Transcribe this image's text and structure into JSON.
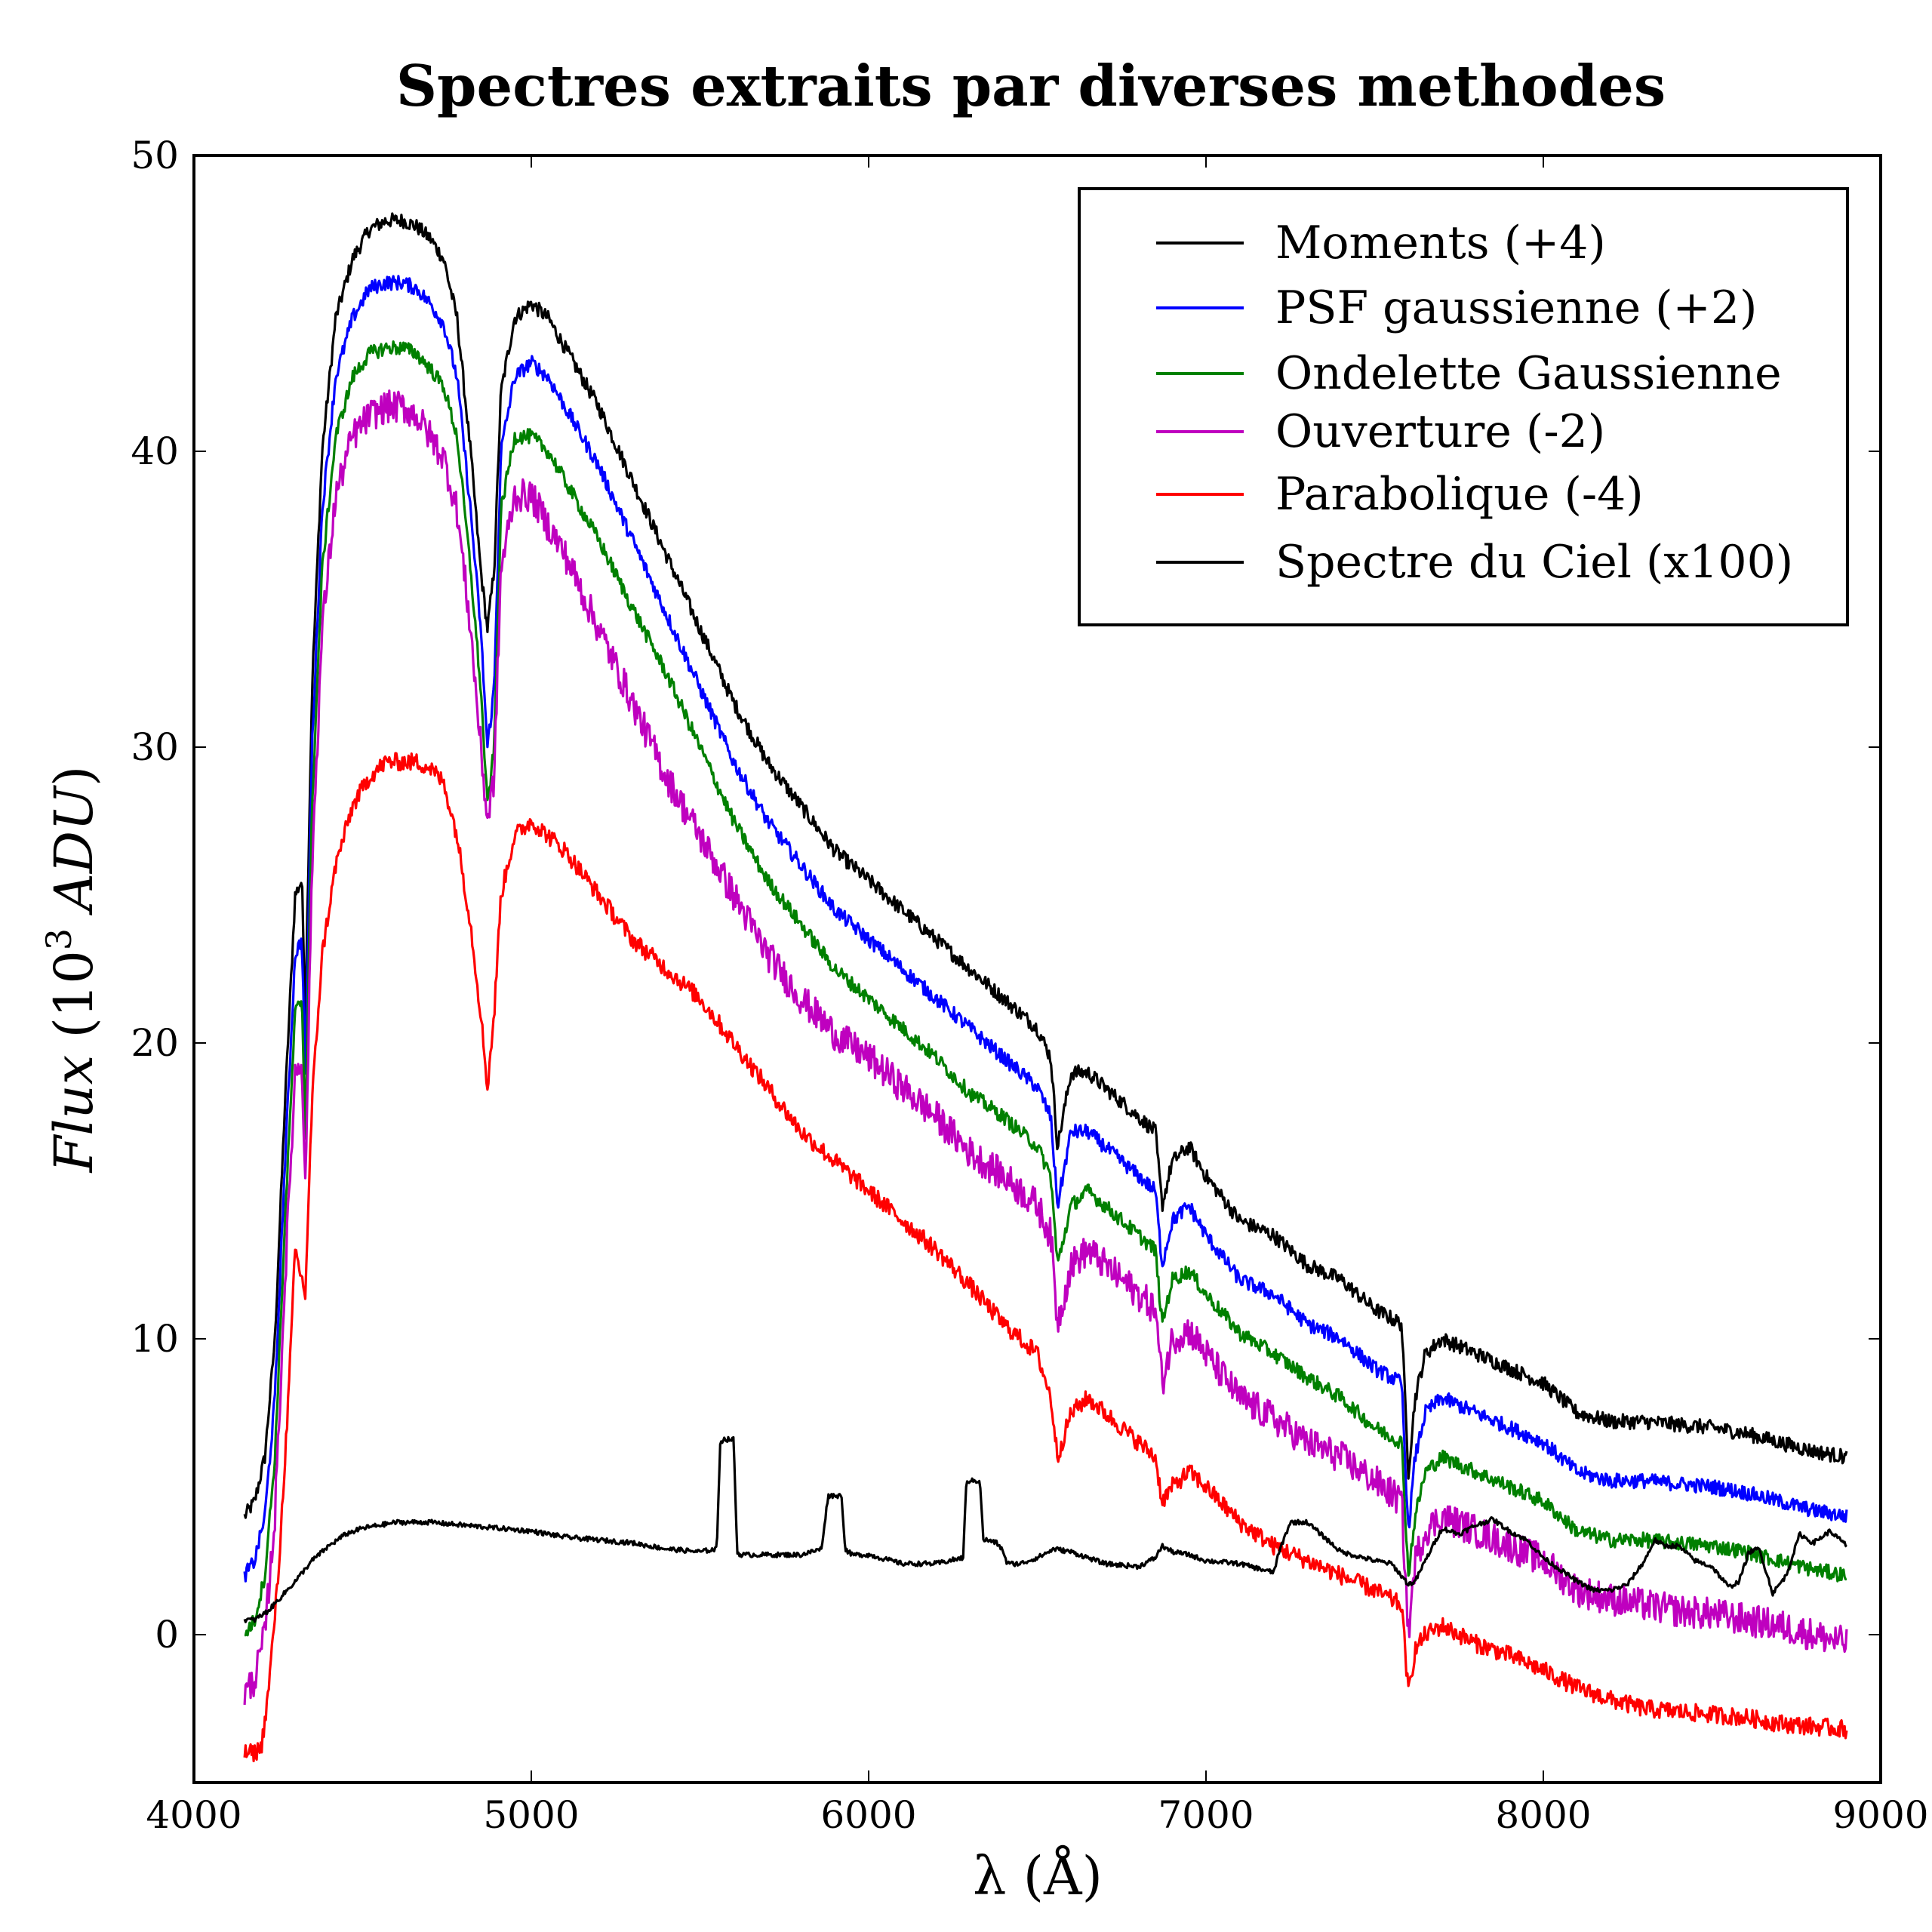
{
  "chart_data": {
    "type": "line",
    "title": "Spectres extraits par diverses methodes",
    "xlabel": "λ (Å)",
    "ylabel_parts": [
      "Flux",
      " (10",
      "3",
      " ",
      "ADU",
      ")"
    ],
    "xlim": [
      4000,
      9000
    ],
    "ylim": [
      -5,
      50
    ],
    "xticks": [
      4000,
      5000,
      6000,
      7000,
      8000,
      9000
    ],
    "yticks": [
      0,
      10,
      20,
      30,
      40,
      50
    ],
    "legend_position": "top-right",
    "series": [
      {
        "name": "Moments (+4)",
        "color": "#000000",
        "noise": 0.25,
        "x": [
          4150,
          4180,
          4210,
          4240,
          4270,
          4300,
          4320,
          4330,
          4350,
          4380,
          4420,
          4470,
          4520,
          4570,
          4620,
          4660,
          4700,
          4740,
          4780,
          4820,
          4850,
          4870,
          4890,
          4910,
          4950,
          5000,
          5050,
          5100,
          5200,
          5300,
          5400,
          5500,
          5600,
          5700,
          5800,
          5900,
          6000,
          6100,
          6200,
          6300,
          6400,
          6500,
          6540,
          6560,
          6600,
          6650,
          6700,
          6800,
          6850,
          6870,
          6900,
          6950,
          7000,
          7100,
          7200,
          7300,
          7400,
          7500,
          7580,
          7600,
          7620,
          7650,
          7700,
          7800,
          7900,
          8000,
          8100,
          8200,
          8300,
          8400,
          8500,
          8600,
          8700,
          8800,
          8900
        ],
        "y": [
          4,
          4.5,
          6,
          10,
          18,
          25,
          25.5,
          21,
          32,
          40,
          44.5,
          46.5,
          47.5,
          47.8,
          47.8,
          47.6,
          47.2,
          46.5,
          44.5,
          40,
          36,
          34,
          36,
          42,
          44.5,
          45,
          44.5,
          43.5,
          41.5,
          39,
          36.5,
          34,
          31.5,
          29.5,
          28,
          26.5,
          25.5,
          24.5,
          23.5,
          22.5,
          21.5,
          20.5,
          19.5,
          16.5,
          19,
          19,
          18.5,
          17.5,
          17,
          14.5,
          16,
          16.5,
          15.5,
          14,
          13.5,
          12.5,
          12,
          11,
          10.5,
          5.5,
          8,
          9.5,
          10,
          9.5,
          9,
          8.5,
          7.5,
          7.2,
          7.2,
          7.1,
          7,
          6.8,
          6.5,
          6.2,
          6
        ]
      },
      {
        "name": "PSF gaussienne (+2)",
        "color": "#0000ff",
        "noise": 0.25,
        "x": [
          4150,
          4180,
          4210,
          4240,
          4270,
          4300,
          4320,
          4330,
          4350,
          4380,
          4420,
          4470,
          4520,
          4570,
          4620,
          4660,
          4700,
          4740,
          4780,
          4820,
          4850,
          4870,
          4890,
          4910,
          4950,
          5000,
          5050,
          5100,
          5200,
          5300,
          5400,
          5500,
          5600,
          5700,
          5800,
          5900,
          6000,
          6100,
          6200,
          6300,
          6400,
          6500,
          6540,
          6560,
          6600,
          6650,
          6700,
          6800,
          6850,
          6870,
          6900,
          6950,
          7000,
          7100,
          7200,
          7300,
          7400,
          7500,
          7580,
          7600,
          7620,
          7650,
          7700,
          7800,
          7900,
          8000,
          8100,
          8200,
          8300,
          8400,
          8500,
          8600,
          8700,
          8800,
          8900
        ],
        "y": [
          2,
          2.5,
          4,
          8,
          16,
          23,
          23.5,
          19,
          30,
          38,
          42.5,
          44.5,
          45.5,
          45.7,
          45.7,
          45.5,
          45,
          44.3,
          42.5,
          38,
          34,
          30,
          32,
          40,
          42.5,
          43,
          42.5,
          41.5,
          39.5,
          37,
          34.5,
          32,
          29.5,
          27.5,
          26,
          24.5,
          23.5,
          22.5,
          21.5,
          20.5,
          19.5,
          18.5,
          17.5,
          14.5,
          17,
          17,
          16.5,
          15.5,
          15,
          12.5,
          14,
          14.5,
          13.5,
          12,
          11.5,
          10.5,
          10,
          9,
          8.5,
          3.5,
          6,
          7.5,
          8,
          7.5,
          7,
          6.5,
          5.5,
          5.2,
          5.2,
          5.1,
          5,
          4.8,
          4.5,
          4.2,
          4
        ]
      },
      {
        "name": "Ondelette Gaussienne",
        "color": "#008000",
        "noise": 0.25,
        "x": [
          4150,
          4180,
          4210,
          4240,
          4270,
          4300,
          4320,
          4330,
          4350,
          4380,
          4420,
          4470,
          4520,
          4570,
          4620,
          4660,
          4700,
          4740,
          4780,
          4820,
          4850,
          4870,
          4890,
          4910,
          4950,
          5000,
          5050,
          5100,
          5200,
          5300,
          5400,
          5500,
          5600,
          5700,
          5800,
          5900,
          6000,
          6100,
          6200,
          6300,
          6400,
          6500,
          6540,
          6560,
          6600,
          6650,
          6700,
          6800,
          6850,
          6870,
          6900,
          6950,
          7000,
          7100,
          7200,
          7300,
          7400,
          7500,
          7580,
          7600,
          7620,
          7650,
          7700,
          7800,
          7900,
          8000,
          8100,
          8200,
          8300,
          8400,
          8500,
          8600,
          8700,
          8800,
          8900
        ],
        "y": [
          0,
          0.5,
          2,
          6,
          14,
          21,
          21.5,
          17,
          28,
          36,
          40.5,
          42.5,
          43.3,
          43.5,
          43.5,
          43.3,
          42.8,
          42.2,
          40.5,
          36,
          32,
          28,
          30,
          38,
          40.5,
          40.5,
          40,
          39,
          37,
          34.7,
          32.5,
          30,
          27.5,
          25.5,
          24,
          22.5,
          21.5,
          20.5,
          19.5,
          18.3,
          17.5,
          16.5,
          15.5,
          12.5,
          14.5,
          15,
          14.5,
          13.5,
          13,
          10.5,
          12,
          12.3,
          11.5,
          10.2,
          9.5,
          8.7,
          8,
          7,
          6.5,
          2,
          4,
          5.5,
          6,
          5.5,
          5,
          4.5,
          3.5,
          3.2,
          3.2,
          3.1,
          3,
          2.8,
          2.5,
          2.2,
          2
        ]
      },
      {
        "name": "Ouverture (-2)",
        "color": "#bf00bf",
        "noise": 0.55,
        "x": [
          4150,
          4180,
          4210,
          4240,
          4270,
          4300,
          4320,
          4330,
          4350,
          4380,
          4420,
          4470,
          4520,
          4570,
          4620,
          4660,
          4700,
          4740,
          4780,
          4820,
          4850,
          4870,
          4890,
          4910,
          4950,
          5000,
          5050,
          5100,
          5200,
          5300,
          5400,
          5500,
          5600,
          5700,
          5800,
          5900,
          6000,
          6100,
          6200,
          6300,
          6400,
          6500,
          6540,
          6560,
          6600,
          6650,
          6700,
          6800,
          6850,
          6870,
          6900,
          6950,
          7000,
          7100,
          7200,
          7300,
          7400,
          7500,
          7580,
          7600,
          7620,
          7650,
          7700,
          7800,
          7900,
          8000,
          8100,
          8200,
          8300,
          8400,
          8500,
          8600,
          8700,
          8800,
          8900
        ],
        "y": [
          -2,
          -1.5,
          0,
          4,
          12,
          19,
          19.5,
          15,
          26,
          34,
          38.5,
          40.5,
          41.2,
          41.5,
          41.5,
          41.2,
          40.5,
          39.8,
          38,
          34,
          30,
          27.5,
          29,
          36,
          38.5,
          38.5,
          37.5,
          36.5,
          34,
          31.5,
          29,
          27,
          25,
          23,
          21.5,
          20.3,
          19.5,
          18.5,
          17.5,
          16.3,
          15.5,
          14.5,
          13.5,
          10.5,
          12.5,
          13,
          12.5,
          11.5,
          11,
          8.5,
          10,
          10.3,
          9.5,
          8,
          7.3,
          6.5,
          6,
          5.2,
          4.5,
          0,
          2.5,
          3.5,
          4,
          3.5,
          3,
          2.5,
          1.5,
          1.2,
          1,
          0.8,
          0.7,
          0.5,
          0.3,
          0,
          -0.3
        ]
      },
      {
        "name": "Parabolique (-4)",
        "color": "#ff0000",
        "noise": 0.3,
        "x": [
          4150,
          4180,
          4200,
          4220,
          4250,
          4280,
          4300,
          4320,
          4330,
          4350,
          4380,
          4420,
          4470,
          4520,
          4570,
          4620,
          4660,
          4700,
          4740,
          4780,
          4820,
          4850,
          4870,
          4890,
          4910,
          4950,
          5000,
          5050,
          5100,
          5200,
          5300,
          5400,
          5500,
          5600,
          5700,
          5800,
          5900,
          6000,
          6100,
          6200,
          6300,
          6400,
          6500,
          6540,
          6560,
          6600,
          6650,
          6700,
          6800,
          6850,
          6870,
          6900,
          6950,
          7000,
          7100,
          7200,
          7300,
          7400,
          7500,
          7580,
          7600,
          7620,
          7650,
          7700,
          7800,
          7900,
          8000,
          8100,
          8200,
          8300,
          8400,
          8500,
          8600,
          8700,
          8800,
          8900
        ],
        "y": [
          -4,
          -4,
          -3.8,
          -2,
          2,
          8,
          13,
          12,
          11.5,
          18,
          23,
          26,
          28,
          29,
          29.5,
          29.5,
          29.5,
          29.3,
          28.8,
          27,
          24,
          21,
          18.5,
          21,
          25,
          27,
          27.5,
          27,
          26.5,
          25,
          23.5,
          22.5,
          21.5,
          20,
          18.5,
          17,
          16,
          15,
          14,
          13,
          11.8,
          10.5,
          9.5,
          8,
          6,
          7.5,
          8,
          7.5,
          6.5,
          6,
          4.5,
          5,
          5.5,
          5,
          3.8,
          3,
          2.5,
          2,
          1.5,
          1,
          -2,
          -0.5,
          0,
          0.3,
          -0.3,
          -0.7,
          -1.2,
          -1.8,
          -2.2,
          -2.5,
          -2.6,
          -2.7,
          -2.8,
          -3,
          -3.1,
          -3.2
        ]
      },
      {
        "name": "Spectre du Ciel (x100)",
        "color": "#000000",
        "noise": 0.08,
        "x": [
          4150,
          4180,
          4220,
          4260,
          4300,
          4350,
          4400,
          4450,
          4500,
          4550,
          4600,
          4700,
          4800,
          4900,
          5000,
          5100,
          5200,
          5300,
          5400,
          5500,
          5550,
          5560,
          5570,
          5600,
          5610,
          5620,
          5700,
          5800,
          5860,
          5880,
          5900,
          5920,
          5930,
          5950,
          6000,
          6100,
          6200,
          6280,
          6290,
          6300,
          6330,
          6340,
          6350,
          6380,
          6400,
          6410,
          6450,
          6500,
          6550,
          6600,
          6650,
          6700,
          6800,
          6850,
          6870,
          6900,
          6950,
          7000,
          7100,
          7200,
          7220,
          7250,
          7300,
          7350,
          7400,
          7500,
          7550,
          7600,
          7620,
          7650,
          7700,
          7750,
          7800,
          7850,
          7900,
          7950,
          8000,
          8050,
          8100,
          8150,
          8200,
          8250,
          8300,
          8330,
          8360,
          8400,
          8450,
          8500,
          8550,
          8580,
          8610,
          8640,
          8680,
          8720,
          8760,
          8800,
          8850,
          8900
        ],
        "y": [
          0.5,
          0.5,
          0.8,
          1.3,
          1.8,
          2.5,
          3,
          3.4,
          3.6,
          3.7,
          3.8,
          3.8,
          3.7,
          3.6,
          3.5,
          3.3,
          3.2,
          3.1,
          2.9,
          2.8,
          2.9,
          6.5,
          6.6,
          6.6,
          2.8,
          2.7,
          2.7,
          2.7,
          2.9,
          4.7,
          4.7,
          4.7,
          2.9,
          2.7,
          2.7,
          2.4,
          2.4,
          2.6,
          5.2,
          5.2,
          5.2,
          3.2,
          3.2,
          3.1,
          2.8,
          2.4,
          2.4,
          2.6,
          2.9,
          2.8,
          2.6,
          2.4,
          2.3,
          2.6,
          3,
          2.8,
          2.7,
          2.5,
          2.4,
          2.1,
          2.9,
          3.8,
          3.8,
          3.3,
          2.8,
          2.5,
          2.4,
          1.7,
          1.8,
          2.5,
          3.6,
          3.4,
          3.7,
          3.9,
          3.5,
          3.2,
          2.6,
          2.2,
          1.8,
          1.5,
          1.5,
          1.7,
          2.5,
          3.2,
          3,
          3,
          2.5,
          2.3,
          1.6,
          1.8,
          2.8,
          2.9,
          1.4,
          2,
          3.4,
          3.1,
          3.5,
          3
        ]
      }
    ]
  }
}
